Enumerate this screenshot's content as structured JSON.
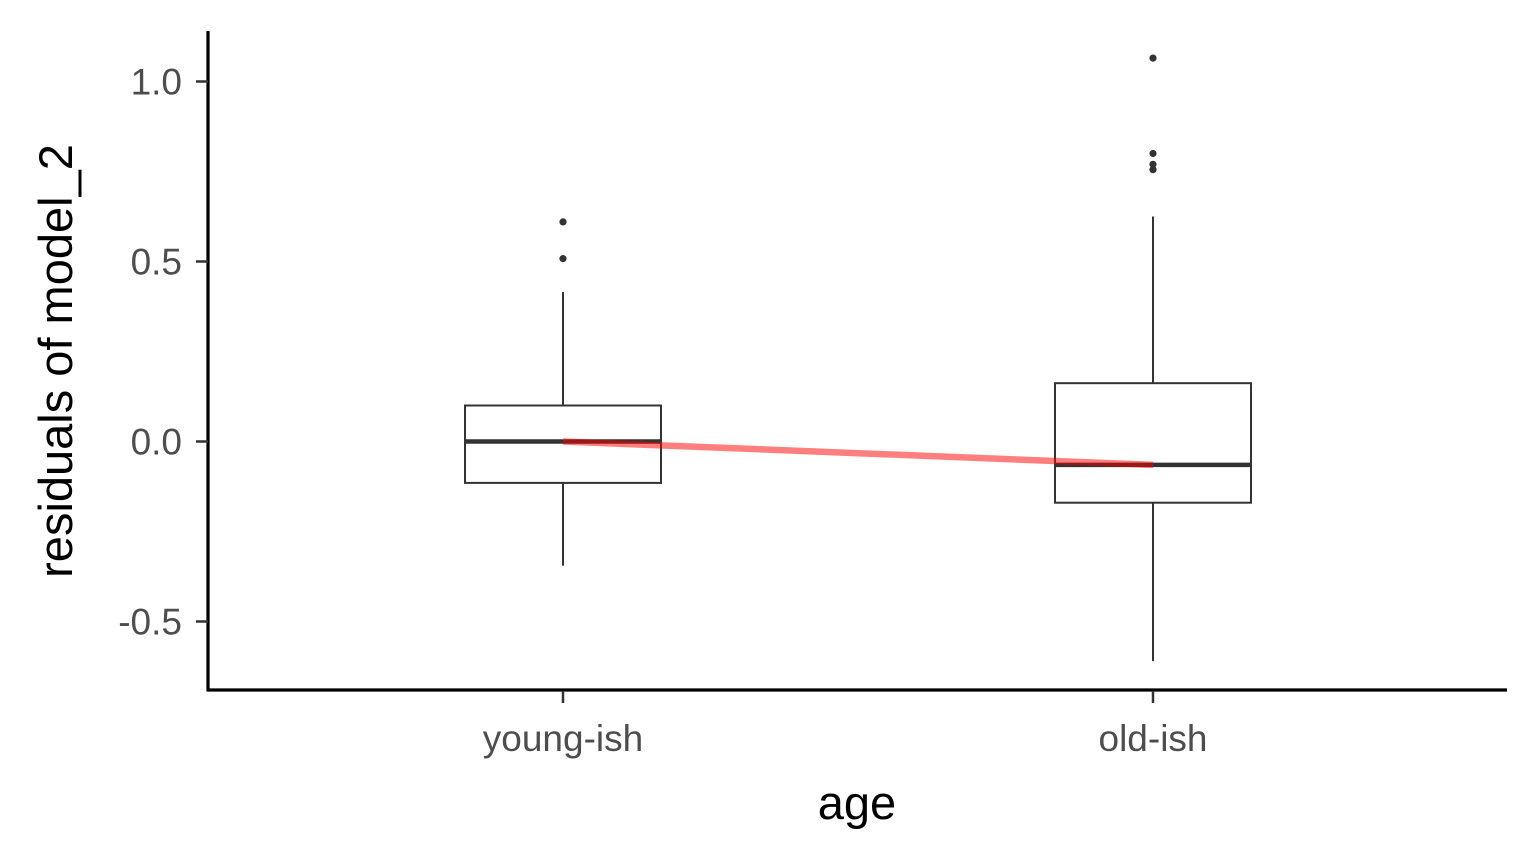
{
  "chart_data": {
    "type": "boxplot",
    "title": "",
    "xlabel": "age",
    "ylabel": "residuals of model_2",
    "ylim": [
      -0.69,
      1.14
    ],
    "yticks": [
      -0.5,
      0.0,
      0.5,
      1.0
    ],
    "ytick_labels": [
      "-0.5",
      "0.0",
      "0.5",
      "1.0"
    ],
    "categories": [
      "young-ish",
      "old-ish"
    ],
    "boxes": [
      {
        "category": "young-ish",
        "whisker_low": -0.345,
        "q1": -0.115,
        "median": 0.0,
        "q3": 0.1,
        "whisker_high": 0.415,
        "outliers": [
          0.508,
          0.61
        ]
      },
      {
        "category": "old-ish",
        "whisker_low": -0.61,
        "q1": -0.17,
        "median": -0.065,
        "q3": 0.162,
        "whisker_high": 0.625,
        "outliers": [
          0.755,
          0.77,
          0.8,
          1.065
        ]
      }
    ],
    "mean_line": {
      "color": "#ff0000",
      "opacity": 0.5,
      "values": [
        0.0,
        -0.065
      ]
    },
    "grid": false,
    "legend": "none"
  }
}
